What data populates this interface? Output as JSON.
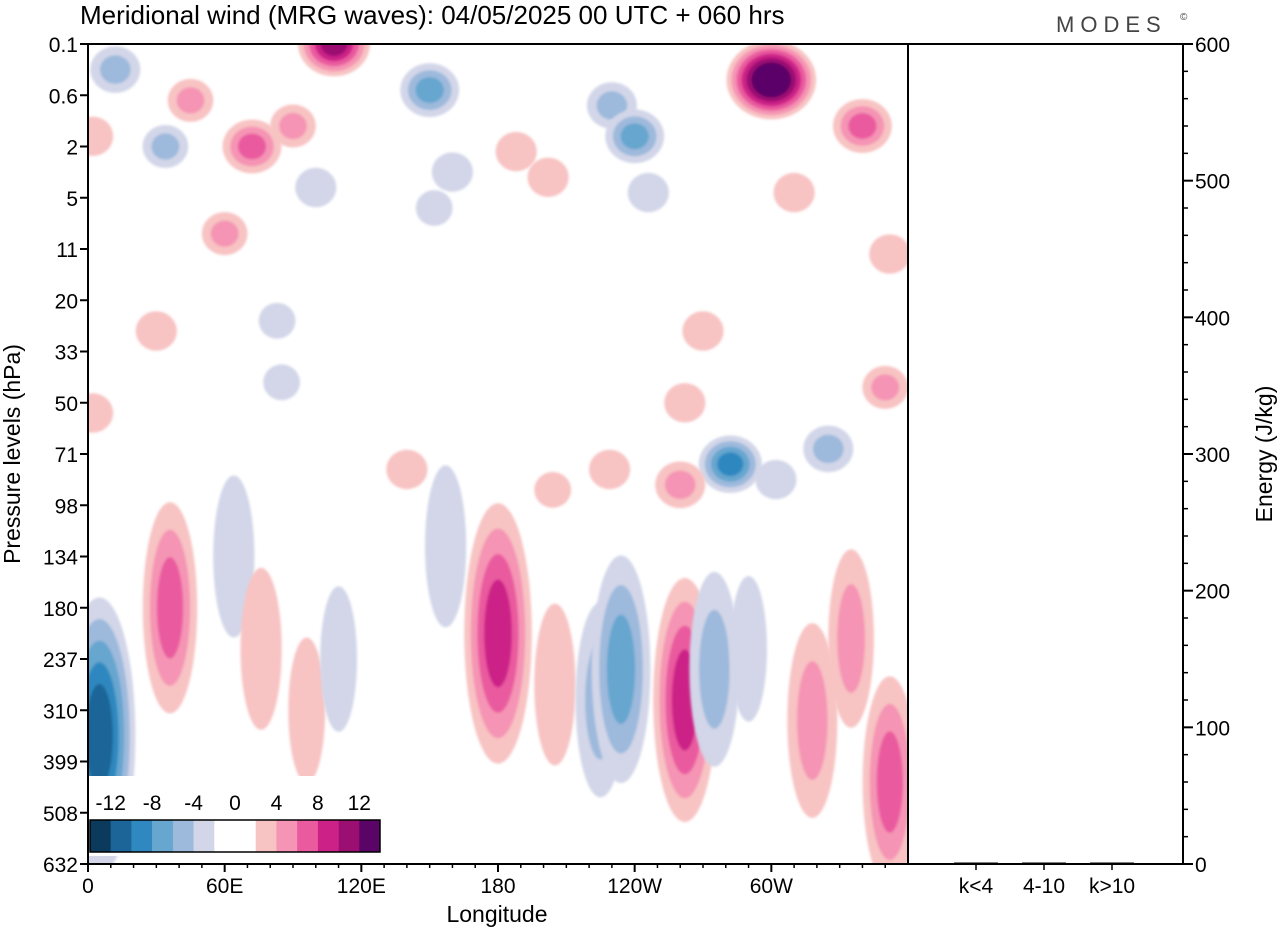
{
  "title": "Meridional wind (MRG waves):  04/05/2025  00 UTC  + 060 hrs",
  "logo": {
    "text": "MODES",
    "mark": "©"
  },
  "chart_data": [
    {
      "type": "heatmap",
      "variable": "Meridional wind",
      "xlabel": "Longitude",
      "ylabel": "Pressure levels (hPa)",
      "x_ticks": [
        "0",
        "60E",
        "120E",
        "180",
        "120W",
        "60W"
      ],
      "x_tick_values": [
        0,
        60,
        120,
        180,
        240,
        300
      ],
      "xlim": [
        0,
        360
      ],
      "y_ticks": [
        "0.1",
        "0.6",
        "2",
        "5",
        "11",
        "20",
        "33",
        "50",
        "71",
        "98",
        "134",
        "180",
        "237",
        "310",
        "399",
        "508",
        "632"
      ],
      "colorbar": {
        "labels": [
          "-12",
          "-8",
          "-4",
          "0",
          "4",
          "8",
          "12"
        ],
        "colors": [
          "#0c3a5c",
          "#1b6598",
          "#2f88bf",
          "#66a6cf",
          "#9db9dc",
          "#d2d6e8",
          "#ffffff",
          "#ffffff",
          "#f8c3c3",
          "#f594b4",
          "#ea5a9f",
          "#cc2187",
          "#9c0f72",
          "#5a0468"
        ]
      },
      "features": [
        {
          "lon": 108,
          "level": 0,
          "value": 10
        },
        {
          "lon": 12,
          "level": 0.5,
          "value": -5
        },
        {
          "lon": 45,
          "level": 1.1,
          "value": 4
        },
        {
          "lon": 34,
          "level": 2.0,
          "value": -4
        },
        {
          "lon": 2,
          "level": 1.8,
          "value": 3
        },
        {
          "lon": 72,
          "level": 2.0,
          "value": 7
        },
        {
          "lon": 90,
          "level": 1.6,
          "value": 4
        },
        {
          "lon": 150,
          "level": 0.9,
          "value": -7
        },
        {
          "lon": 160,
          "level": 2.5,
          "value": -3
        },
        {
          "lon": 152,
          "level": 3.2,
          "value": -2
        },
        {
          "lon": 100,
          "level": 2.8,
          "value": -3
        },
        {
          "lon": 60,
          "level": 3.7,
          "value": 4
        },
        {
          "lon": 188,
          "level": 2.1,
          "value": 3
        },
        {
          "lon": 202,
          "level": 2.6,
          "value": 3
        },
        {
          "lon": 230,
          "level": 1.2,
          "value": -5
        },
        {
          "lon": 240,
          "level": 1.8,
          "value": -7
        },
        {
          "lon": 246,
          "level": 2.9,
          "value": -3
        },
        {
          "lon": 300,
          "level": 0.7,
          "value": 14
        },
        {
          "lon": 340,
          "level": 1.6,
          "value": 7
        },
        {
          "lon": 310,
          "level": 2.9,
          "value": 3
        },
        {
          "lon": 352,
          "level": 4.1,
          "value": 3
        },
        {
          "lon": 30,
          "level": 5.6,
          "value": 3
        },
        {
          "lon": 83,
          "level": 5.4,
          "value": -2
        },
        {
          "lon": 85,
          "level": 6.6,
          "value": -2
        },
        {
          "lon": 2,
          "level": 7.2,
          "value": 3
        },
        {
          "lon": 270,
          "level": 5.6,
          "value": 3
        },
        {
          "lon": 350,
          "level": 6.7,
          "value": 4
        },
        {
          "lon": 262,
          "level": 7.0,
          "value": 3
        },
        {
          "lon": 325,
          "level": 7.9,
          "value": -5
        },
        {
          "lon": 282,
          "level": 8.2,
          "value": -8
        },
        {
          "lon": 302,
          "level": 8.5,
          "value": -3
        },
        {
          "lon": 260,
          "level": 8.6,
          "value": 5
        },
        {
          "lon": 229,
          "level": 8.3,
          "value": 3
        },
        {
          "lon": 140,
          "level": 8.3,
          "value": 3
        },
        {
          "lon": 204,
          "level": 8.7,
          "value": 2
        },
        {
          "lon": 36,
          "level": 11.0,
          "value": 6
        },
        {
          "lon": 64,
          "level": 10.0,
          "value": -3
        },
        {
          "lon": 5,
          "level": 13.5,
          "value": -10
        },
        {
          "lon": 76,
          "level": 11.8,
          "value": 3
        },
        {
          "lon": 96,
          "level": 13.0,
          "value": 2
        },
        {
          "lon": 110,
          "level": 12.0,
          "value": -2
        },
        {
          "lon": 157,
          "level": 9.8,
          "value": -3
        },
        {
          "lon": 180,
          "level": 11.5,
          "value": 9
        },
        {
          "lon": 205,
          "level": 12.5,
          "value": 3
        },
        {
          "lon": 225,
          "level": 12.8,
          "value": -5
        },
        {
          "lon": 234,
          "level": 12.2,
          "value": -7
        },
        {
          "lon": 262,
          "level": 12.8,
          "value": 8
        },
        {
          "lon": 275,
          "level": 12.2,
          "value": -5
        },
        {
          "lon": 290,
          "level": 11.8,
          "value": -2
        },
        {
          "lon": 318,
          "level": 13.2,
          "value": 5
        },
        {
          "lon": 335,
          "level": 11.6,
          "value": 4
        },
        {
          "lon": 352,
          "level": 14.4,
          "value": 6
        }
      ]
    },
    {
      "type": "bar",
      "ylabel": "Energy (J/kg)",
      "categories": [
        "k<4",
        "4-10",
        "k>10"
      ],
      "values": [
        0,
        1,
        0
      ],
      "ylim": [
        0,
        600
      ],
      "y_ticks": [
        "0",
        "100",
        "200",
        "300",
        "400",
        "500",
        "600"
      ],
      "y_tick_values": [
        0,
        100,
        200,
        300,
        400,
        500,
        600
      ]
    }
  ]
}
